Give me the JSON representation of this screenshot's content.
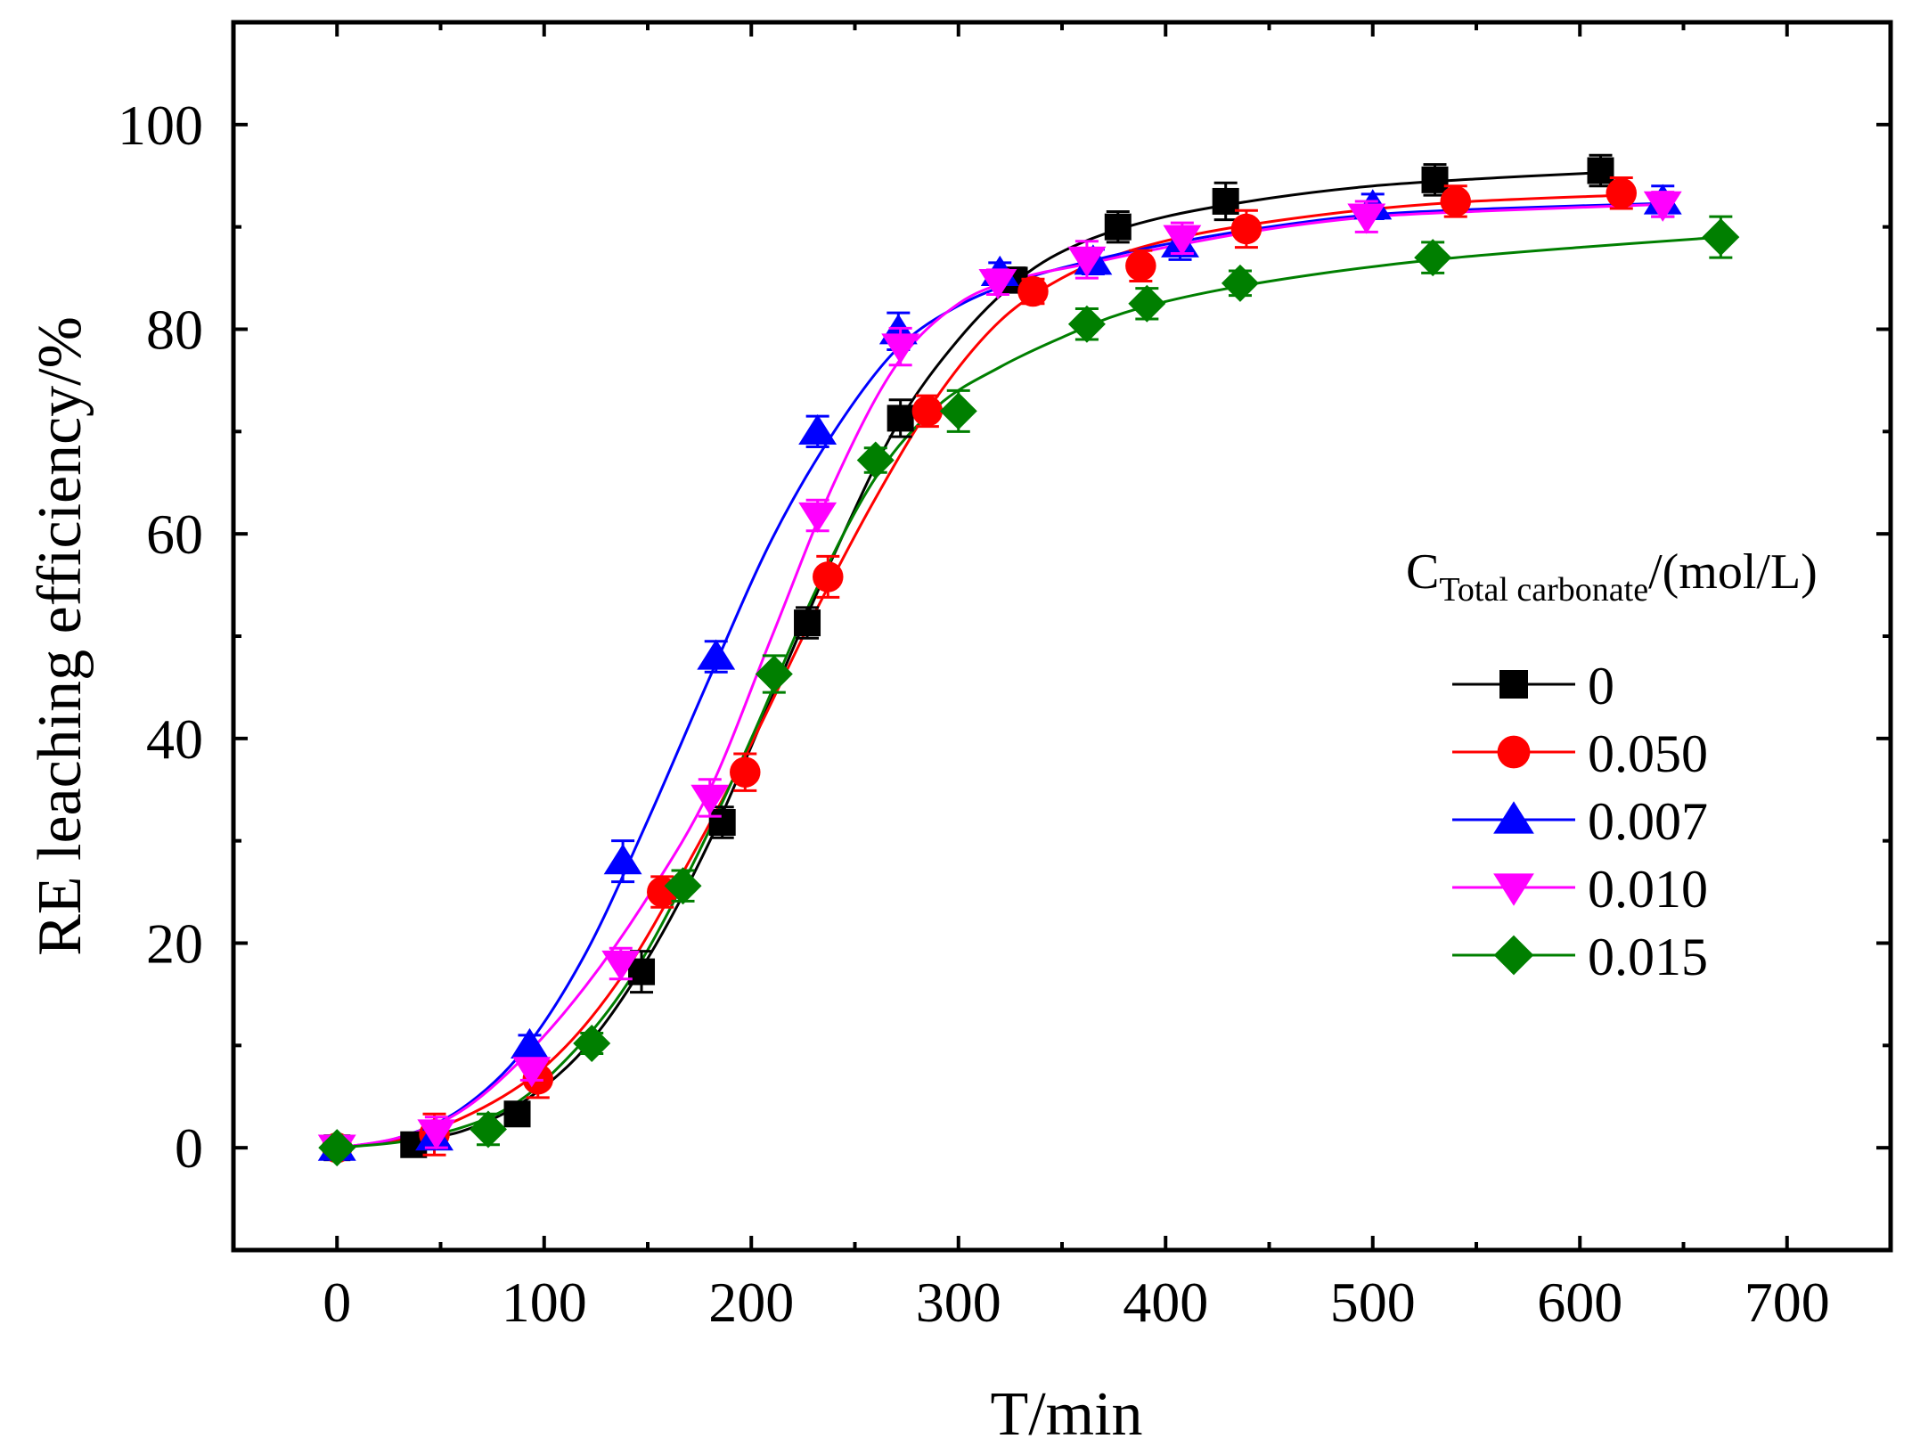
{
  "chart_data": {
    "type": "scatter",
    "title": "",
    "xlabel": "T/min",
    "ylabel": "RE leaching efficiency/%",
    "xlim": [
      -50,
      750
    ],
    "ylim": [
      -10,
      110
    ],
    "xticks": [
      0,
      100,
      200,
      300,
      400,
      500,
      600,
      700
    ],
    "yticks": [
      0,
      20,
      40,
      60,
      80,
      100
    ],
    "grid": false,
    "legend": {
      "position": "right",
      "title_main": "C",
      "title_sub": "Total carbonate",
      "title_suffix": "/(mol/L)"
    },
    "series": [
      {
        "name": "0",
        "color": "#000000",
        "marker": "square",
        "fit": "smooth",
        "x": [
          0,
          37,
          87,
          147,
          186,
          227,
          272,
          327,
          377,
          429,
          530,
          610
        ],
        "y": [
          0,
          0.3,
          3.3,
          17.2,
          31.8,
          51.3,
          71.3,
          84.8,
          90.0,
          92.5,
          94.6,
          95.5
        ],
        "err": [
          0.5,
          0.5,
          1.0,
          2.0,
          1.5,
          1.5,
          1.8,
          1.2,
          1.5,
          1.8,
          1.5,
          1.5
        ],
        "fit_points": [
          [
            0,
            0
          ],
          [
            30,
            0.6
          ],
          [
            60,
            1.6
          ],
          [
            90,
            4.5
          ],
          [
            120,
            9.8
          ],
          [
            150,
            18.5
          ],
          [
            180,
            30
          ],
          [
            210,
            44
          ],
          [
            240,
            58
          ],
          [
            270,
            70.5
          ],
          [
            300,
            79
          ],
          [
            330,
            85
          ],
          [
            360,
            88.5
          ],
          [
            400,
            91
          ],
          [
            450,
            92.8
          ],
          [
            500,
            94
          ],
          [
            560,
            94.8
          ],
          [
            610,
            95.3
          ]
        ]
      },
      {
        "name": "0.050",
        "color": "#ff0000",
        "marker": "circle",
        "fit": "smooth",
        "x": [
          0,
          47,
          97,
          157,
          197,
          237,
          285,
          336,
          388,
          439,
          540,
          620
        ],
        "y": [
          0,
          1.3,
          6.7,
          25.0,
          36.7,
          55.8,
          72.0,
          83.7,
          86.2,
          89.8,
          92.5,
          93.3
        ],
        "err": [
          0.5,
          2.0,
          1.8,
          1.5,
          1.8,
          2.0,
          1.5,
          1.2,
          1.5,
          1.8,
          1.5,
          1.5
        ],
        "fit_points": [
          [
            0,
            0
          ],
          [
            40,
            1.3
          ],
          [
            80,
            5
          ],
          [
            110,
            9.8
          ],
          [
            140,
            17.5
          ],
          [
            170,
            28
          ],
          [
            200,
            39.5
          ],
          [
            230,
            52
          ],
          [
            260,
            63.5
          ],
          [
            290,
            73.5
          ],
          [
            320,
            80.8
          ],
          [
            350,
            85
          ],
          [
            380,
            87.5
          ],
          [
            420,
            89.5
          ],
          [
            480,
            91.3
          ],
          [
            540,
            92.4
          ],
          [
            620,
            93.1
          ]
        ]
      },
      {
        "name": "0.007",
        "color": "#0000ff",
        "marker": "triangle-up",
        "fit": "smooth",
        "x": [
          0,
          47,
          93,
          138,
          183,
          232,
          271,
          320,
          365,
          407,
          500,
          640
        ],
        "y": [
          0,
          1.0,
          10.0,
          28.0,
          48.0,
          70.0,
          79.8,
          85.5,
          86.6,
          88.3,
          92.0,
          92.5
        ],
        "err": [
          0.5,
          0.8,
          1.0,
          2.0,
          1.5,
          1.5,
          1.8,
          1.0,
          1.2,
          1.5,
          1.2,
          1.5
        ],
        "fit_points": [
          [
            0,
            0
          ],
          [
            30,
            1
          ],
          [
            60,
            3.8
          ],
          [
            90,
            9.5
          ],
          [
            120,
            19
          ],
          [
            150,
            32
          ],
          [
            180,
            46
          ],
          [
            210,
            59.5
          ],
          [
            240,
            70
          ],
          [
            270,
            78
          ],
          [
            300,
            82.3
          ],
          [
            330,
            84.8
          ],
          [
            360,
            86.5
          ],
          [
            400,
            88.3
          ],
          [
            450,
            90
          ],
          [
            500,
            91.2
          ],
          [
            560,
            91.8
          ],
          [
            640,
            92.3
          ]
        ]
      },
      {
        "name": "0.010",
        "color": "#ff00ff",
        "marker": "triangle-down",
        "fit": "smooth",
        "x": [
          0,
          48,
          94,
          137,
          180,
          232,
          272,
          319,
          362,
          408,
          497,
          640
        ],
        "y": [
          0,
          1.5,
          7.6,
          18.0,
          34.2,
          61.8,
          78.3,
          84.6,
          86.8,
          88.9,
          91.0,
          92.2
        ],
        "err": [
          0.5,
          1.5,
          1.0,
          1.5,
          1.8,
          1.5,
          1.8,
          1.2,
          1.8,
          1.5,
          1.5,
          1.2
        ],
        "fit_points": [
          [
            0,
            0
          ],
          [
            30,
            1
          ],
          [
            60,
            3.6
          ],
          [
            90,
            8.8
          ],
          [
            120,
            15.8
          ],
          [
            150,
            24.5
          ],
          [
            180,
            35
          ],
          [
            210,
            50
          ],
          [
            240,
            65
          ],
          [
            270,
            76.5
          ],
          [
            300,
            82.5
          ],
          [
            330,
            85
          ],
          [
            360,
            86.3
          ],
          [
            400,
            88
          ],
          [
            450,
            89.8
          ],
          [
            500,
            91
          ],
          [
            560,
            91.6
          ],
          [
            640,
            92.2
          ]
        ]
      },
      {
        "name": "0.015",
        "color": "#007f00",
        "marker": "diamond",
        "fit": "smooth",
        "x": [
          0,
          73,
          123,
          167,
          211,
          260,
          300,
          362,
          391,
          436,
          529,
          668
        ],
        "y": [
          0,
          1.8,
          10.2,
          25.6,
          46.3,
          67.2,
          72.0,
          80.5,
          82.5,
          84.5,
          87.0,
          89.0
        ],
        "err": [
          0.5,
          1.5,
          1.0,
          1.5,
          1.8,
          1.2,
          2.0,
          1.5,
          1.5,
          1.2,
          1.5,
          2.0
        ],
        "fit_points": [
          [
            0,
            0
          ],
          [
            40,
            0.9
          ],
          [
            80,
            3.6
          ],
          [
            110,
            8.5
          ],
          [
            140,
            16
          ],
          [
            170,
            27
          ],
          [
            200,
            40
          ],
          [
            230,
            54
          ],
          [
            260,
            65.5
          ],
          [
            290,
            72.5
          ],
          [
            320,
            76.3
          ],
          [
            350,
            79.2
          ],
          [
            380,
            81.6
          ],
          [
            420,
            83.6
          ],
          [
            470,
            85.3
          ],
          [
            530,
            86.8
          ],
          [
            600,
            88
          ],
          [
            668,
            89
          ]
        ]
      }
    ]
  }
}
